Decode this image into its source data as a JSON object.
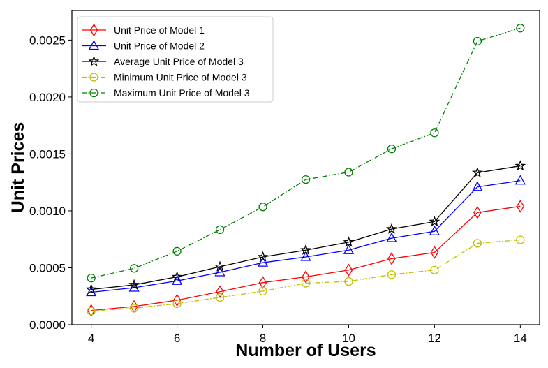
{
  "chart_data": {
    "type": "line",
    "title": "",
    "xlabel": "Number of Users",
    "ylabel": "Unit Prices",
    "xlim": [
      3.55,
      14.45
    ],
    "ylim": [
      0.0,
      0.00276
    ],
    "xticks": [
      4,
      6,
      8,
      10,
      12,
      14
    ],
    "yticks": [
      0.0,
      0.0005,
      0.001,
      0.0015,
      0.002,
      0.0025
    ],
    "ytick_labels": [
      "0.0000",
      "0.0005",
      "0.0010",
      "0.0015",
      "0.0020",
      "0.0025"
    ],
    "grid": false,
    "legend_position": "top-left",
    "x": [
      4,
      5,
      6,
      7,
      8,
      9,
      10,
      11,
      12,
      13,
      14
    ],
    "series": [
      {
        "name": "Unit Price of Model 1",
        "color": "#ff0000",
        "marker": "diamond",
        "linestyle": "solid",
        "values": [
          0.000125,
          0.00016,
          0.000215,
          0.00029,
          0.00037,
          0.00042,
          0.00048,
          0.00058,
          0.000635,
          0.000985,
          0.00104
        ]
      },
      {
        "name": "Unit Price of Model 2",
        "color": "#0000ff",
        "marker": "triangle",
        "linestyle": "solid",
        "values": [
          0.000285,
          0.000325,
          0.000385,
          0.00046,
          0.000545,
          0.000595,
          0.000655,
          0.00076,
          0.00082,
          0.00121,
          0.001265
        ]
      },
      {
        "name": "Average Unit Price of Model 3",
        "color": "#000000",
        "marker": "star",
        "linestyle": "solid",
        "values": [
          0.00031,
          0.00035,
          0.00042,
          0.00051,
          0.000595,
          0.000655,
          0.000725,
          0.00084,
          0.000905,
          0.001335,
          0.001395
        ]
      },
      {
        "name": "Minimum Unit Price of Model 3",
        "color": "#bfbf00",
        "marker": "circle",
        "linestyle": "dashdot",
        "values": [
          0.00012,
          0.000145,
          0.000185,
          0.00024,
          0.000295,
          0.000365,
          0.00038,
          0.00044,
          0.00048,
          0.000715,
          0.000745
        ]
      },
      {
        "name": "Maximum Unit Price of Model 3",
        "color": "#008000",
        "marker": "circle",
        "linestyle": "dashdot",
        "values": [
          0.00041,
          0.000495,
          0.000645,
          0.000835,
          0.001035,
          0.001275,
          0.00134,
          0.001545,
          0.001685,
          0.00249,
          0.002605
        ]
      }
    ]
  }
}
